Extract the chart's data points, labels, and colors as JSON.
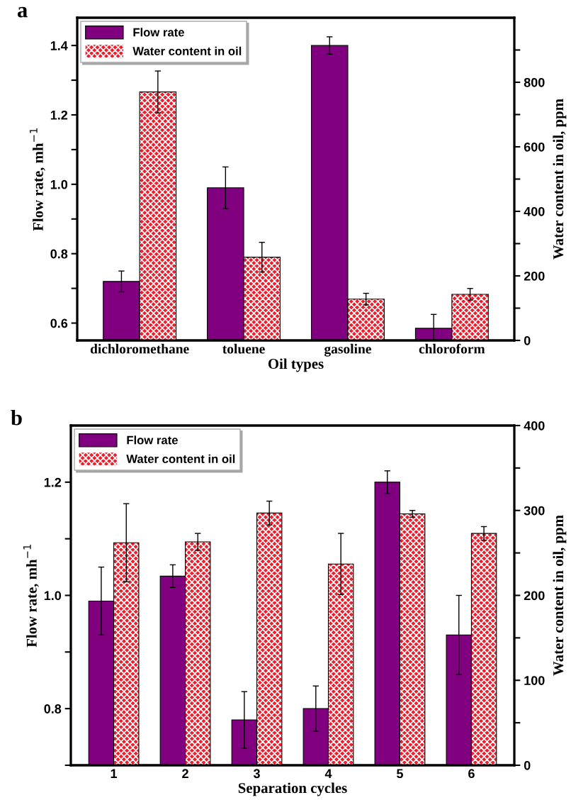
{
  "chart_data": [
    {
      "type": "bar",
      "annotations": [
        "a"
      ],
      "xlabel": "Oil types",
      "ylabel": "Flow rate, mh$^{−1}$",
      "y2label": "Water content in oil, ppm",
      "categories": [
        "dichloromethane",
        "toluene",
        "gasoline",
        "chloroform"
      ],
      "legend": "top left",
      "grid": false,
      "ylim": [
        0.55,
        1.48
      ],
      "yticks": [
        0.6,
        {
          "value": 0.7,
          "label": null
        },
        0.8,
        {
          "value": 0.9,
          "label": null
        },
        {
          "value": 1.0,
          "label": "1.0"
        },
        {
          "value": 1.1,
          "label": null
        },
        1.2,
        {
          "value": 1.3,
          "label": null
        },
        1.4
      ],
      "y2lim": [
        0,
        1000
      ],
      "y2ticks": [
        0,
        {
          "value": 100,
          "label": null
        },
        200,
        {
          "value": 300,
          "label": null
        },
        400,
        {
          "value": 500,
          "label": null
        },
        600,
        {
          "value": 700,
          "label": null
        },
        800,
        {
          "value": 900,
          "label": null
        }
      ],
      "series": [
        {
          "name": "Flow rate",
          "color": "#800080",
          "values": [
            0.72,
            0.99,
            1.4,
            0.585
          ],
          "errors": [
            0.03,
            0.06,
            0.025,
            0.04
          ]
        },
        {
          "name": "Water content in oil",
          "color": "#f01e2c",
          "axis": "y2",
          "values": [
            770,
            258,
            128,
            143
          ],
          "errors": [
            65,
            46,
            18,
            18
          ]
        }
      ]
    },
    {
      "type": "bar",
      "annotations": [
        "b"
      ],
      "xlabel": "Separation cycles",
      "ylabel": "Flow rate, mh$^{−1}$",
      "y2label": "Water content in oil, ppm",
      "categories": [
        "1",
        "2",
        "3",
        "4",
        "5",
        "6"
      ],
      "legend": "top left",
      "grid": false,
      "ylim": [
        0.7,
        1.3
      ],
      "yticks": [
        {
          "value": 0.7,
          "label": null
        },
        0.8,
        {
          "value": 0.9,
          "label": null
        },
        {
          "value": 1.0,
          "label": "1.0"
        },
        {
          "value": 1.1,
          "label": null
        },
        1.2
      ],
      "y2lim": [
        0,
        400
      ],
      "y2ticks": [
        0,
        {
          "value": 50,
          "label": null
        },
        100,
        {
          "value": 150,
          "label": null
        },
        200,
        {
          "value": 250,
          "label": null
        },
        300,
        {
          "value": 350,
          "label": null
        },
        400
      ],
      "series": [
        {
          "name": "Flow rate",
          "color": "#800080",
          "values": [
            0.99,
            1.034,
            0.78,
            0.8,
            1.2,
            0.93
          ],
          "errors": [
            0.06,
            0.02,
            0.05,
            0.04,
            0.02,
            0.07
          ]
        },
        {
          "name": "Water content in oil",
          "color": "#f01e2c",
          "axis": "y2",
          "values": [
            262,
            263,
            297,
            237,
            296,
            273
          ],
          "errors": [
            46,
            10,
            14,
            36,
            4,
            8
          ]
        }
      ]
    }
  ]
}
